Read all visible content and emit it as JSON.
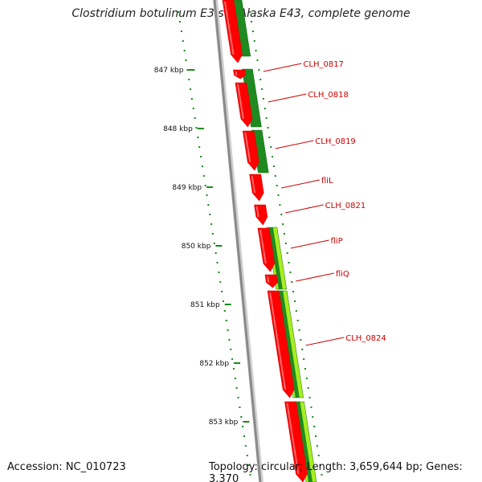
{
  "title": "Clostridium botulinum E3 str. Alaska E43, complete genome",
  "accession": "Accession: NC_010723",
  "summary": "Topology: circular; Length: 3,659,644 bp; Genes: 3,370",
  "colors": {
    "backbone": "#8a8a8a",
    "forward_cds": "#ff0000",
    "reverse_cds": "#1f8a1f",
    "reverse_cds_light": "#a8ee20",
    "tick": "#1a8a1a",
    "label": "#cc0000"
  },
  "scale": {
    "unit": "kbp",
    "ticks": [
      {
        "value": 847,
        "label": "847 kbp"
      },
      {
        "value": 848,
        "label": "848 kbp"
      },
      {
        "value": 849,
        "label": "849 kbp"
      },
      {
        "value": 850,
        "label": "850 kbp"
      },
      {
        "value": 851,
        "label": "851 kbp"
      },
      {
        "value": 852,
        "label": "852 kbp"
      },
      {
        "value": 853,
        "label": "853 kbp"
      }
    ]
  },
  "genes": [
    {
      "name": "CLH_0817",
      "strand": "+"
    },
    {
      "name": "CLH_0818",
      "strand": "+"
    },
    {
      "name": "CLH_0819",
      "strand": "+"
    },
    {
      "name": "fliL",
      "strand": "+"
    },
    {
      "name": "CLH_0821",
      "strand": "+"
    },
    {
      "name": "fliP",
      "strand": "+"
    },
    {
      "name": "fliQ",
      "strand": "+"
    },
    {
      "name": "CLH_0824",
      "strand": "+"
    }
  ]
}
